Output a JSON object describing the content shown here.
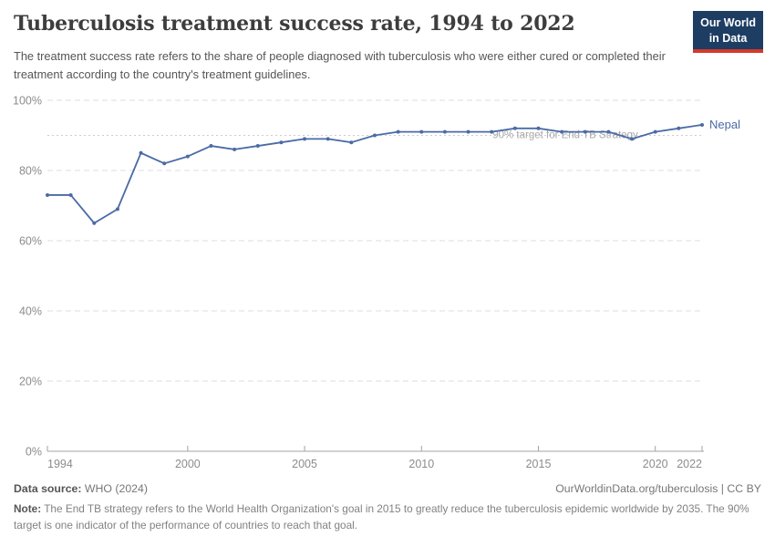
{
  "header": {
    "title": "Tuberculosis treatment success rate, 1994 to 2022",
    "subtitle": "The treatment success rate refers to the share of people diagnosed with tuberculosis who were either cured or completed their treatment according to the country's treatment guidelines.",
    "logo": {
      "line1": "Our World",
      "line2": "in Data",
      "bg_color": "#1d3d63",
      "accent_color": "#d33a2b"
    }
  },
  "chart_data": {
    "type": "line",
    "title": "Tuberculosis treatment success rate, 1994 to 2022",
    "x": [
      1994,
      1995,
      1996,
      1997,
      1998,
      1999,
      2000,
      2001,
      2002,
      2003,
      2004,
      2005,
      2006,
      2007,
      2008,
      2009,
      2010,
      2011,
      2012,
      2013,
      2014,
      2015,
      2016,
      2017,
      2018,
      2019,
      2020,
      2021,
      2022
    ],
    "series": [
      {
        "name": "Nepal",
        "color": "#4a6ba5",
        "values": [
          73,
          73,
          65,
          69,
          85,
          82,
          84,
          87,
          86,
          87,
          88,
          89,
          89,
          88,
          90,
          91,
          91,
          91,
          91,
          91,
          92,
          92,
          91,
          91,
          91,
          89,
          91,
          92,
          93
        ]
      }
    ],
    "xlabel": "",
    "ylabel": "",
    "ylim": [
      0,
      100
    ],
    "yticks": [
      0,
      20,
      40,
      60,
      80,
      100
    ],
    "ytick_suffix": "%",
    "xticks": [
      1994,
      2000,
      2005,
      2010,
      2015,
      2020,
      2022
    ],
    "grid": true,
    "legend_position": "line-end",
    "target_line": {
      "value": 90,
      "label": "90% target for End TB Strategy"
    }
  },
  "footer": {
    "source_label": "Data source:",
    "source_text": " WHO (2024)",
    "attribution": "OurWorldinData.org/tuberculosis | CC BY",
    "note_label": "Note:",
    "note_text": " The End TB strategy refers to the World Health Organization's goal in 2015 to greatly reduce the tuberculosis epidemic worldwide by 2035. The 90% target is one indicator of the performance of countries to reach that goal."
  }
}
